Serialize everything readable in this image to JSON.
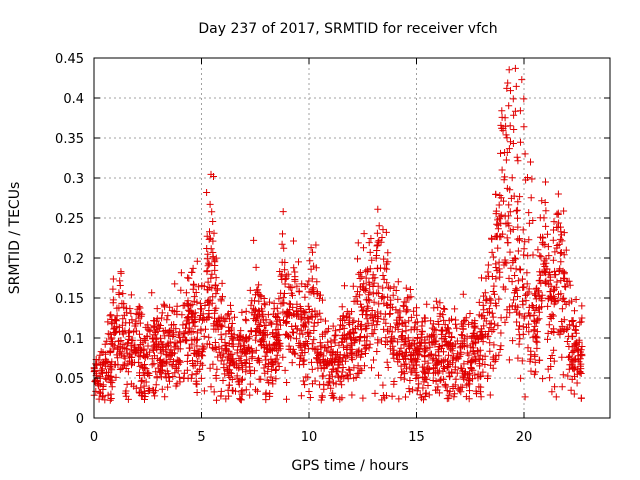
{
  "chart_data": {
    "type": "scatter",
    "title": "Day 237 of 2017, SRMTID for receiver vfch",
    "xlabel": "GPS time / hours",
    "ylabel": "SRMTID / TECUs",
    "xlim": [
      0,
      24
    ],
    "ylim": [
      0,
      0.45
    ],
    "xticks": [
      0,
      5,
      10,
      15,
      20
    ],
    "yticks": [
      0,
      0.05,
      0.1,
      0.15,
      0.2,
      0.25,
      0.3,
      0.35,
      0.4,
      0.45
    ],
    "xtick_labels": [
      "0",
      "5",
      "10",
      "15",
      "20"
    ],
    "ytick_labels": [
      "0",
      "0.05",
      "0.1",
      "0.15",
      "0.2",
      "0.25",
      "0.3",
      "0.35",
      "0.4",
      "0.45"
    ],
    "grid": true,
    "marker": "+",
    "series": [
      {
        "name": "SRMTID",
        "color": "#e00000",
        "profile_x": [
          0,
          0.3,
          0.5,
          0.8,
          1.0,
          1.2,
          1.5,
          2.0,
          2.5,
          3.0,
          3.5,
          4.0,
          4.5,
          5.0,
          5.3,
          5.5,
          5.7,
          6.0,
          6.5,
          7.0,
          7.3,
          7.5,
          8.0,
          8.5,
          8.8,
          9.0,
          9.3,
          9.7,
          10.0,
          10.3,
          10.7,
          11.0,
          11.5,
          12.0,
          12.5,
          13.0,
          13.3,
          13.7,
          14.0,
          14.5,
          15.0,
          15.5,
          16.0,
          16.5,
          17.0,
          17.5,
          18.0,
          18.5,
          18.8,
          19.0,
          19.2,
          19.5,
          19.8,
          20.0,
          20.3,
          20.6,
          21.0,
          21.3,
          21.6,
          21.9,
          22.2,
          22.5,
          22.7
        ],
        "profile_y": [
          0.05,
          0.055,
          0.06,
          0.08,
          0.12,
          0.11,
          0.09,
          0.085,
          0.08,
          0.085,
          0.09,
          0.1,
          0.11,
          0.1,
          0.15,
          0.17,
          0.12,
          0.09,
          0.08,
          0.07,
          0.1,
          0.12,
          0.09,
          0.1,
          0.15,
          0.12,
          0.14,
          0.1,
          0.13,
          0.12,
          0.08,
          0.07,
          0.08,
          0.1,
          0.12,
          0.14,
          0.15,
          0.12,
          0.11,
          0.09,
          0.08,
          0.08,
          0.09,
          0.08,
          0.075,
          0.08,
          0.085,
          0.13,
          0.2,
          0.25,
          0.27,
          0.22,
          0.17,
          0.2,
          0.13,
          0.12,
          0.18,
          0.16,
          0.17,
          0.15,
          0.09,
          0.08,
          0.08
        ],
        "spread": 0.35,
        "n_points": 2500,
        "peaks": [
          {
            "x": 5.4,
            "y": 0.267
          },
          {
            "x": 8.8,
            "y": 0.258
          },
          {
            "x": 10.1,
            "y": 0.213
          },
          {
            "x": 13.2,
            "y": 0.261
          },
          {
            "x": 13.6,
            "y": 0.232
          },
          {
            "x": 19.2,
            "y": 0.412
          },
          {
            "x": 19.6,
            "y": 0.437
          },
          {
            "x": 19.9,
            "y": 0.423
          },
          {
            "x": 20.3,
            "y": 0.32
          },
          {
            "x": 21.0,
            "y": 0.295
          },
          {
            "x": 21.6,
            "y": 0.28
          }
        ]
      }
    ]
  }
}
